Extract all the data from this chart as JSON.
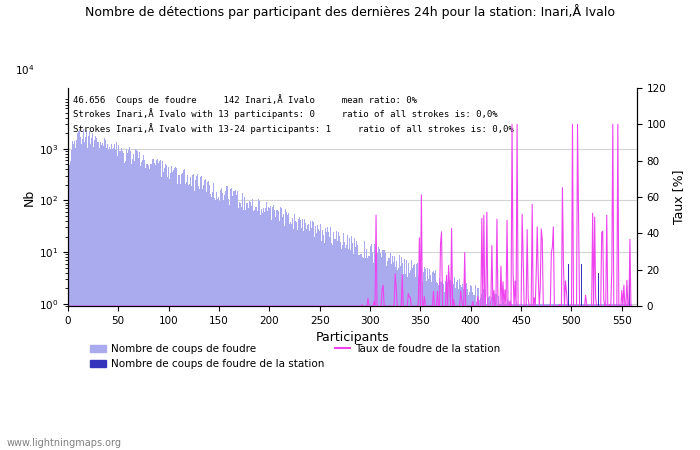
{
  "title": "Nombre de détections par participant des dernières 24h pour la station: Inari,Å Ivalo",
  "annotation_line1": "46.656  Coups de foudre     142 Inari,Å Ivalo     mean ratio: 0%",
  "annotation_line2": "Strokes Inari,Å Ivalo with 13 participants: 0     ratio of all strokes is: 0,0%",
  "annotation_line3": "Strokes Inari,Å Ivalo with 13-24 participants: 1     ratio of all strokes is: 0,0%",
  "ylabel_left": "Nb",
  "ylabel_right": "Taux [%]",
  "xlabel": "Participants",
  "watermark": "www.lightningmaps.org",
  "legend_label1": "Nombre de coups de foudre",
  "legend_label2": "Nombre de coups de foudre de la station",
  "legend_label3": "Taux de foudre de la station",
  "bar_color_main": "#aaaaee",
  "bar_color_station": "#3333bb",
  "line_color_taux": "#ee44ee",
  "n_participants": 560,
  "ylim_right": [
    0,
    120
  ],
  "background_color": "#ffffff"
}
